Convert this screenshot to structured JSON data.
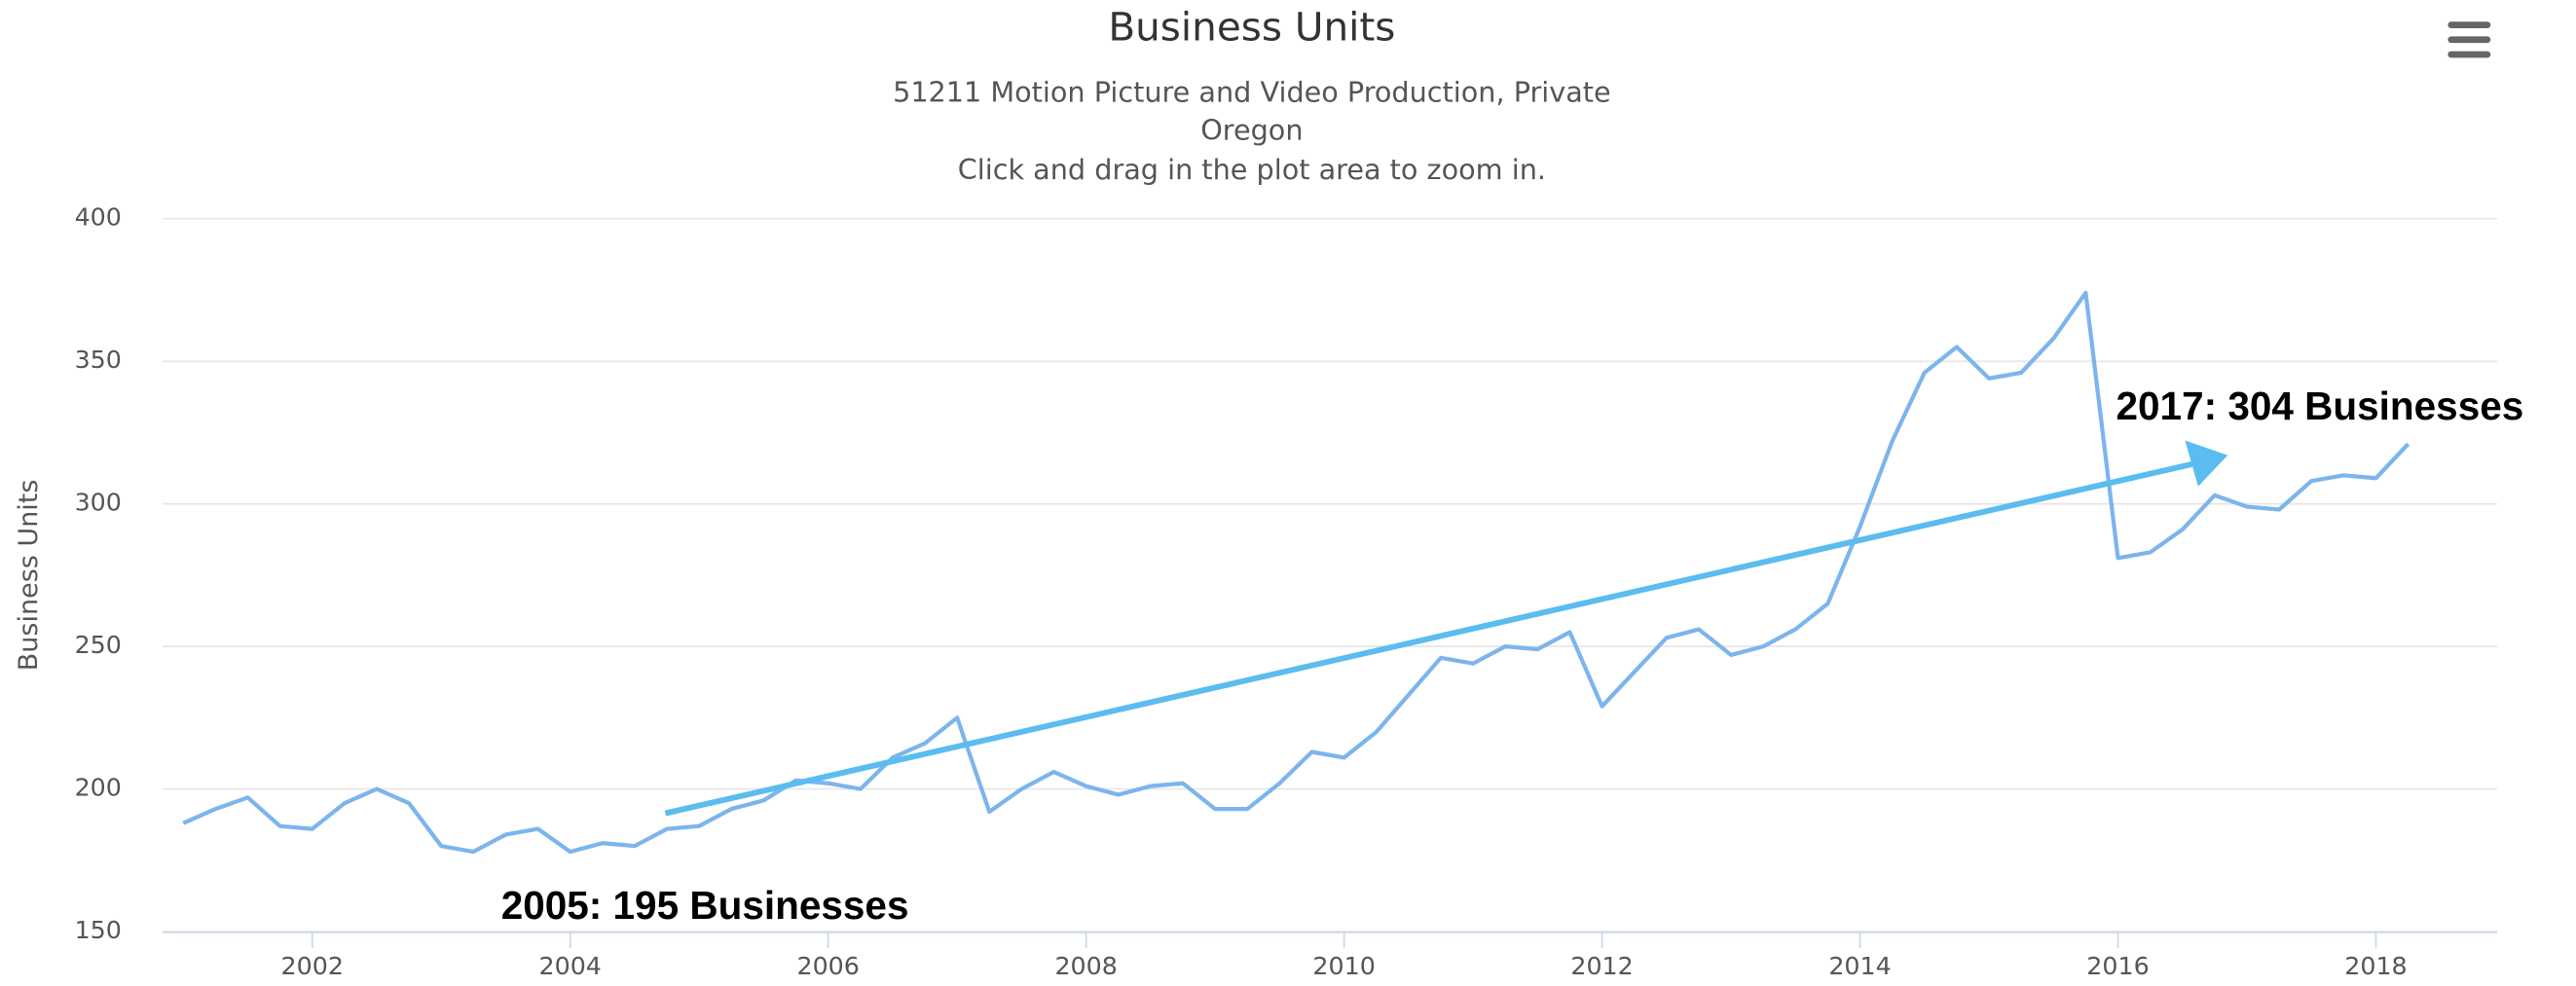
{
  "chart_data": {
    "type": "line",
    "title": "Business Units",
    "subtitle": [
      "51211 Motion Picture and Video Production, Private",
      "Oregon",
      "Click and drag in the plot area to zoom in."
    ],
    "y_label": "Business Units",
    "x": [
      2001,
      2001.25,
      2001.5,
      2001.75,
      2002,
      2002.25,
      2002.5,
      2002.75,
      2003,
      2003.25,
      2003.5,
      2003.75,
      2004,
      2004.25,
      2004.5,
      2004.75,
      2005,
      2005.25,
      2005.5,
      2005.75,
      2006,
      2006.25,
      2006.5,
      2006.75,
      2007,
      2007.25,
      2007.5,
      2007.75,
      2008,
      2008.25,
      2008.5,
      2008.75,
      2009,
      2009.25,
      2009.5,
      2009.75,
      2010,
      2010.25,
      2010.5,
      2010.75,
      2011,
      2011.25,
      2011.5,
      2011.75,
      2012,
      2012.25,
      2012.5,
      2012.75,
      2013,
      2013.25,
      2013.5,
      2013.75,
      2014,
      2014.25,
      2014.5,
      2014.75,
      2015,
      2015.25,
      2015.5,
      2015.75,
      2016,
      2016.25,
      2016.5,
      2016.75,
      2017,
      2017.25,
      2017.5,
      2017.75,
      2018,
      2018.25
    ],
    "series": [
      {
        "name": "Business Units",
        "color": "#7cb5ec",
        "values": [
          188,
          193,
          197,
          187,
          186,
          195,
          200,
          195,
          180,
          178,
          184,
          186,
          178,
          181,
          180,
          186,
          187,
          193,
          196,
          203,
          202,
          200,
          211,
          216,
          225,
          192,
          200,
          206,
          201,
          198,
          201,
          202,
          193,
          193,
          202,
          213,
          211,
          220,
          233,
          246,
          244,
          250,
          249,
          255,
          229,
          241,
          253,
          256,
          247,
          250,
          256,
          265,
          292,
          322,
          346,
          355,
          344,
          346,
          358,
          374,
          281,
          283,
          291,
          303,
          299,
          298,
          308,
          310,
          309,
          321
        ]
      }
    ],
    "xlim": [
      2000.84,
      2018.94
    ],
    "xticks": [
      2002,
      2004,
      2006,
      2008,
      2010,
      2012,
      2014,
      2016,
      2018
    ],
    "ylim": [
      150,
      400
    ],
    "yticks": [
      150,
      200,
      250,
      300,
      350,
      400
    ],
    "grid": true,
    "annotations": [
      "2005: 195 Businesses",
      "2017: 304 Businesses"
    ]
  }
}
